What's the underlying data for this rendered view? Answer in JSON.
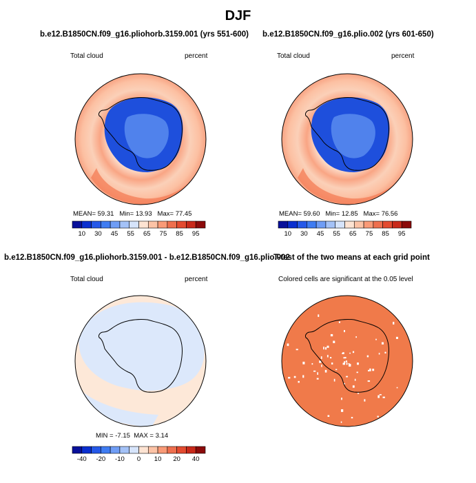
{
  "title": "DJF",
  "colors": {
    "ocean_land_mask": "#ffffff",
    "coastline": "#000000",
    "sig_fill": "#f07a4a"
  },
  "panels": [
    {
      "id": "model1",
      "title": "b.e12.B1850CN.f09_g16.pliohorb.3159.001 (yrs 551-600)",
      "left_label": "Total cloud",
      "right_label": "percent",
      "stats": {
        "mean_label": "MEAN=",
        "mean": "59.31",
        "min_label": "Min=",
        "min": "13.93",
        "max_label": "Max=",
        "max": "77.45"
      },
      "colorbar": {
        "colors": [
          "#08109a",
          "#0a2fcf",
          "#2558e8",
          "#3f7cf2",
          "#6f9df5",
          "#a4c2f7",
          "#d6e4fb",
          "#fde3d2",
          "#fcc3a6",
          "#f99a77",
          "#ee6f4e",
          "#e34b30",
          "#c8291a",
          "#8b0a0a"
        ],
        "labels": [
          "10",
          "30",
          "45",
          "55",
          "65",
          "75",
          "85",
          "95"
        ]
      }
    },
    {
      "id": "model2",
      "title": "b.e12.B1850CN.f09_g16.plio.002 (yrs 601-650)",
      "left_label": "Total cloud",
      "right_label": "percent",
      "stats": {
        "mean_label": "MEAN=",
        "mean": "59.60",
        "min_label": "Min=",
        "min": "12.85",
        "max_label": "Max=",
        "max": "76.56"
      },
      "colorbar": {
        "colors": [
          "#08109a",
          "#0a2fcf",
          "#2558e8",
          "#3f7cf2",
          "#6f9df5",
          "#a4c2f7",
          "#d6e4fb",
          "#fde3d2",
          "#fcc3a6",
          "#f99a77",
          "#ee6f4e",
          "#e34b30",
          "#c8291a",
          "#8b0a0a"
        ],
        "labels": [
          "10",
          "30",
          "45",
          "55",
          "65",
          "75",
          "85",
          "95"
        ]
      }
    },
    {
      "id": "difference",
      "title": "b.e12.B1850CN.f09_g16.pliohorb.3159.001 - b.e12.B1850CN.f09_g16.plio.002",
      "left_label": "Total cloud",
      "right_label": "percent",
      "stats": {
        "min_label": "MIN =",
        "min": "-7.15",
        "max_label": "MAX =",
        "max": "3.14"
      },
      "colorbar": {
        "colors": [
          "#08109a",
          "#0a2fcf",
          "#2558e8",
          "#3f7cf2",
          "#6f9df5",
          "#a4c2f7",
          "#d6e4fb",
          "#fde3d2",
          "#fcc3a6",
          "#f99a77",
          "#ee6f4e",
          "#e34b30",
          "#c8291a",
          "#8b0a0a"
        ],
        "labels": [
          "-40",
          "-20",
          "-10",
          "0",
          "10",
          "20",
          "40"
        ]
      }
    },
    {
      "id": "ttest",
      "title": "T-test of the two means at each grid point",
      "subtitle": "Colored cells are significant at the 0.05 level"
    }
  ],
  "chart_data": [
    {
      "type": "heatmap",
      "projection": "south-polar-stereographic",
      "title": "b.e12.B1850CN.f09_g16.pliohorb.3159.001 (yrs 551-600)",
      "variable": "Total cloud",
      "units": "percent",
      "mean": 59.31,
      "min": 13.93,
      "max": 77.45,
      "contour_levels": [
        10,
        15,
        20,
        25,
        30,
        35,
        40,
        45,
        50,
        55,
        60,
        65,
        70,
        75,
        80,
        85,
        90,
        95
      ],
      "colorbar_ticks": [
        10,
        30,
        45,
        55,
        65,
        75,
        85,
        95
      ]
    },
    {
      "type": "heatmap",
      "projection": "south-polar-stereographic",
      "title": "b.e12.B1850CN.f09_g16.plio.002 (yrs 601-650)",
      "variable": "Total cloud",
      "units": "percent",
      "mean": 59.6,
      "min": 12.85,
      "max": 76.56,
      "contour_levels": [
        10,
        15,
        20,
        25,
        30,
        35,
        40,
        45,
        50,
        55,
        60,
        65,
        70,
        75,
        80,
        85,
        90,
        95
      ],
      "colorbar_ticks": [
        10,
        30,
        45,
        55,
        65,
        75,
        85,
        95
      ]
    },
    {
      "type": "heatmap",
      "projection": "south-polar-stereographic",
      "title": "b.e12.B1850CN.f09_g16.pliohorb.3159.001 - b.e12.B1850CN.f09_g16.plio.002",
      "variable": "Total cloud",
      "units": "percent",
      "min": -7.15,
      "max": 3.14,
      "colorbar_ticks": [
        -40,
        -20,
        -10,
        0,
        10,
        20,
        40
      ]
    },
    {
      "type": "heatmap",
      "projection": "south-polar-stereographic",
      "title": "T-test of the two means at each grid point",
      "note": "Colored cells are significant at the 0.05 level",
      "significance_level": 0.05
    }
  ]
}
